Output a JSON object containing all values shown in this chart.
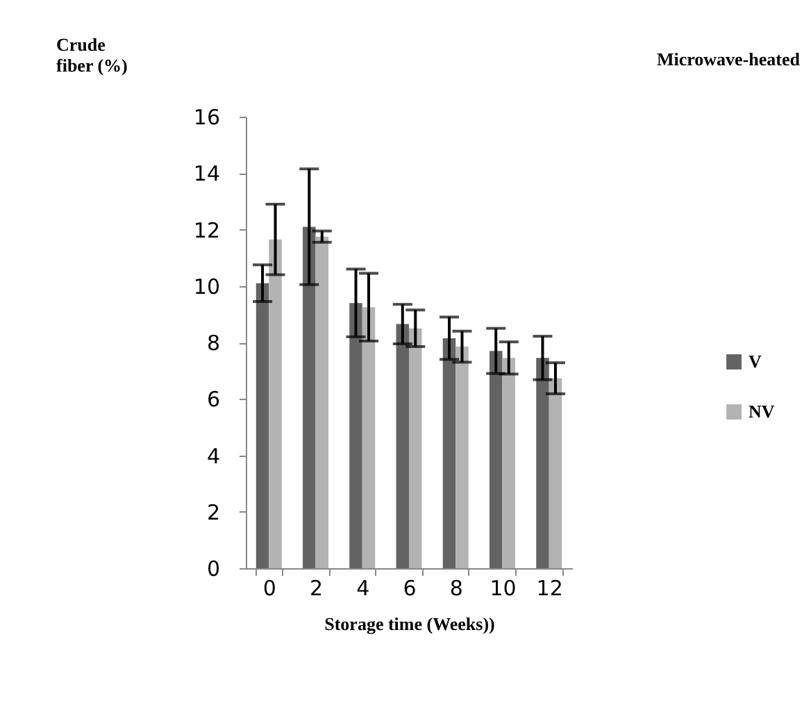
{
  "chart_data": {
    "type": "bar",
    "title": "Microwave-heated",
    "xlabel": "Storage time (Weeks))",
    "ylabel": "Crude fiber (%)",
    "categories": [
      "0",
      "2",
      "4",
      "6",
      "8",
      "10",
      "12"
    ],
    "series": [
      {
        "name": "V",
        "color": "#636363",
        "values": [
          10.1,
          12.1,
          9.4,
          8.65,
          8.15,
          7.7,
          7.45
        ],
        "errors": [
          0.65,
          2.05,
          1.2,
          0.7,
          0.75,
          0.8,
          0.77
        ]
      },
      {
        "name": "NV",
        "color": "#b3b3b3",
        "values": [
          11.65,
          11.75,
          9.25,
          8.5,
          7.85,
          7.45,
          6.73
        ],
        "errors": [
          1.25,
          0.2,
          1.2,
          0.65,
          0.55,
          0.57,
          0.55
        ]
      }
    ],
    "ylim": [
      0,
      16
    ],
    "yticks": [
      0,
      2,
      4,
      6,
      8,
      10,
      12,
      14,
      16
    ],
    "grid": false,
    "legend": "right"
  }
}
